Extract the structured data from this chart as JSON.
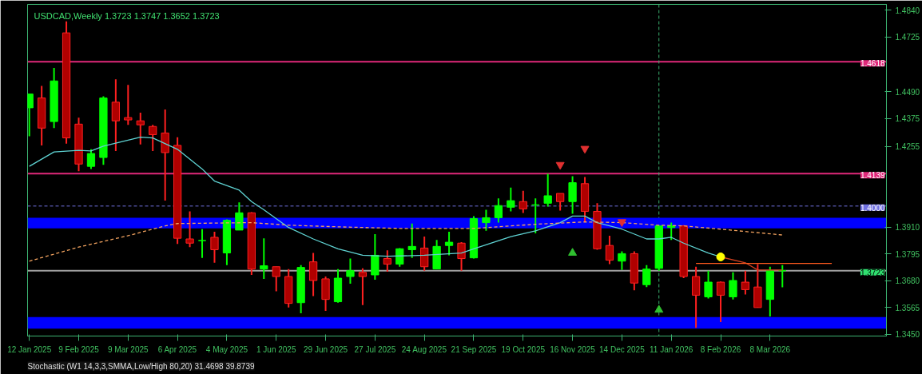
{
  "chart_data": {
    "type": "candlestick",
    "title": "USDCAD,Weekly  1.3723 1.3747 1.3652 1.3723",
    "x": [
      "2025-01-12",
      "2025-01-19",
      "2025-01-26",
      "2025-02-02",
      "2025-02-09",
      "2025-02-16",
      "2025-02-23",
      "2025-03-02",
      "2025-03-09",
      "2025-03-16",
      "2025-03-23",
      "2025-03-30",
      "2025-04-06",
      "2025-04-13",
      "2025-04-20",
      "2025-04-27",
      "2025-05-04",
      "2025-05-11",
      "2025-05-18",
      "2025-05-25",
      "2025-06-01",
      "2025-06-08",
      "2025-06-15",
      "2025-06-22",
      "2025-06-29",
      "2025-07-06",
      "2025-07-13",
      "2025-07-20",
      "2025-07-27",
      "2025-08-03",
      "2025-08-10",
      "2025-08-17",
      "2025-08-24",
      "2025-08-31",
      "2025-09-07",
      "2025-09-14",
      "2025-09-21",
      "2025-09-28",
      "2025-10-05",
      "2025-10-12",
      "2025-10-19",
      "2025-10-26",
      "2025-11-02",
      "2025-11-09",
      "2025-11-16",
      "2025-11-23",
      "2025-11-30",
      "2025-12-07",
      "2025-12-14",
      "2025-12-21",
      "2025-12-28",
      "2026-01-04",
      "2026-01-11",
      "2026-01-18",
      "2026-01-25",
      "2026-02-01",
      "2026-02-08",
      "2026-02-15",
      "2026-02-22",
      "2026-03-01",
      "2026-03-08",
      "2026-03-15"
    ],
    "ohlc": [
      [
        1.4421,
        1.448,
        1.4299,
        1.448
      ],
      [
        1.4463,
        1.4515,
        1.426,
        1.4334
      ],
      [
        1.4362,
        1.4592,
        1.4334,
        1.4536
      ],
      [
        1.4742,
        1.4791,
        1.4267,
        1.4292
      ],
      [
        1.4351,
        1.4379,
        1.4149,
        1.418
      ],
      [
        1.417,
        1.4243,
        1.4159,
        1.4225
      ],
      [
        1.4208,
        1.447,
        1.4177,
        1.4463
      ],
      [
        1.4445,
        1.4543,
        1.4236,
        1.4365
      ],
      [
        1.4379,
        1.4519,
        1.4348,
        1.4369
      ],
      [
        1.4365,
        1.44,
        1.4264,
        1.4348
      ],
      [
        1.4341,
        1.4348,
        1.4236,
        1.4306
      ],
      [
        1.4313,
        1.4414,
        1.4023,
        1.4229
      ],
      [
        1.426,
        1.4295,
        1.3838,
        1.3862
      ],
      [
        1.3859,
        1.3977,
        1.3824,
        1.3841
      ],
      [
        1.3852,
        1.3901,
        1.3778,
        1.3852
      ],
      [
        1.3866,
        1.389,
        1.3757,
        1.3813
      ],
      [
        1.3799,
        1.3943,
        1.3747,
        1.3939
      ],
      [
        1.3897,
        1.4016,
        1.3897,
        1.3971
      ],
      [
        1.3971,
        1.3974,
        1.3705,
        1.373
      ],
      [
        1.373,
        1.3862,
        1.3688,
        1.3744
      ],
      [
        1.374,
        1.374,
        1.3635,
        1.3698
      ],
      [
        1.3698,
        1.373,
        1.3565,
        1.3583
      ],
      [
        1.3586,
        1.3747,
        1.3541,
        1.3737
      ],
      [
        1.3761,
        1.3799,
        1.3614,
        1.3681
      ],
      [
        1.3688,
        1.3698,
        1.3551,
        1.36
      ],
      [
        1.359,
        1.373,
        1.3586,
        1.3691
      ],
      [
        1.3698,
        1.3775,
        1.3667,
        1.3723
      ],
      [
        1.3716,
        1.3733,
        1.3576,
        1.3698
      ],
      [
        1.3705,
        1.388,
        1.3684,
        1.3789
      ],
      [
        1.3775,
        1.381,
        1.3719,
        1.3751
      ],
      [
        1.3751,
        1.382,
        1.374,
        1.3817
      ],
      [
        1.3813,
        1.3925,
        1.3778,
        1.3827
      ],
      [
        1.382,
        1.3869,
        1.3723,
        1.374
      ],
      [
        1.373,
        1.3855,
        1.373,
        1.3827
      ],
      [
        1.3831,
        1.389,
        1.3789,
        1.3845
      ],
      [
        1.3841,
        1.3845,
        1.3723,
        1.3775
      ],
      [
        1.3778,
        1.3957,
        1.3775,
        1.3946
      ],
      [
        1.3929,
        1.3984,
        1.3894,
        1.395
      ],
      [
        1.395,
        1.4033,
        1.3929,
        1.4002
      ],
      [
        1.3995,
        1.4079,
        1.3977,
        1.4023
      ],
      [
        1.4019,
        1.4065,
        1.397,
        1.3988
      ],
      [
        1.4005,
        1.4033,
        1.3883,
        1.4005
      ],
      [
        1.4012,
        1.4138,
        1.3998,
        1.4044
      ],
      [
        1.4054,
        1.4054,
        1.3981,
        1.4019
      ],
      [
        1.4019,
        1.4128,
        1.3967,
        1.41
      ],
      [
        1.4096,
        1.4124,
        1.3932,
        1.3977
      ],
      [
        1.3977,
        1.4012,
        1.3813,
        1.3817
      ],
      [
        1.3831,
        1.3873,
        1.3751,
        1.3768
      ],
      [
        1.3764,
        1.3806,
        1.3726,
        1.3796
      ],
      [
        1.3796,
        1.3806,
        1.3639,
        1.367
      ],
      [
        1.3663,
        1.3747,
        1.3653,
        1.373
      ],
      [
        1.3733,
        1.3915,
        1.3723,
        1.3915
      ],
      [
        1.3908,
        1.3929,
        1.3855,
        1.3915
      ],
      [
        1.3915,
        1.3918,
        1.3691,
        1.3698
      ],
      [
        1.3698,
        1.374,
        1.3478,
        1.3618
      ],
      [
        1.3611,
        1.3723,
        1.3604,
        1.3674
      ],
      [
        1.3674,
        1.3677,
        1.3503,
        1.3618
      ],
      [
        1.3611,
        1.3716,
        1.36,
        1.3681
      ],
      [
        1.3674,
        1.3723,
        1.3621,
        1.3642
      ],
      [
        1.3653,
        1.3751,
        1.3565,
        1.3565
      ],
      [
        1.36,
        1.374,
        1.3527,
        1.3723
      ],
      [
        1.3723,
        1.3747,
        1.3652,
        1.3723
      ]
    ],
    "colors": [
      "#00ff00",
      "#b00000",
      "#00ff00",
      "#b00000",
      "#b00000",
      "#00ff00",
      "#00ff00",
      "#b00000",
      "#b00000",
      "#b00000",
      "#b00000",
      "#b00000",
      "#b00000",
      "#b00000",
      "#00ff00",
      "#b00000",
      "#00ff00",
      "#00ff00",
      "#b00000",
      "#00ff00",
      "#b00000",
      "#b00000",
      "#00ff00",
      "#b00000",
      "#b00000",
      "#00ff00",
      "#00ff00",
      "#b00000",
      "#00ff00",
      "#b00000",
      "#00ff00",
      "#00ff00",
      "#b00000",
      "#00ff00",
      "#00ff00",
      "#b00000",
      "#00ff00",
      "#00ff00",
      "#00ff00",
      "#00ff00",
      "#b00000",
      "#00ff00",
      "#00ff00",
      "#b00000",
      "#00ff00",
      "#b00000",
      "#b00000",
      "#b00000",
      "#00ff00",
      "#b00000",
      "#00ff00",
      "#00ff00",
      "#00ff00",
      "#b00000",
      "#b00000",
      "#00ff00",
      "#b00000",
      "#00ff00",
      "#b00000",
      "#b00000",
      "#00ff00",
      "#00ff00"
    ],
    "series": [
      {
        "type": "line",
        "color": "#5fd3d3",
        "x": [
          "2025-01-12",
          "2025-01-26",
          "2025-02-09",
          "2025-02-16",
          "2025-02-23",
          "2025-03-16",
          "2025-03-23",
          "2025-04-06",
          "2025-04-20",
          "2025-04-27",
          "2025-05-11",
          "2025-05-18",
          "2025-05-25",
          "2025-06-08",
          "2025-06-22",
          "2025-07-06",
          "2025-07-20",
          "2025-08-03",
          "2025-08-24",
          "2025-09-14",
          "2025-09-21",
          "2025-10-12",
          "2025-10-26",
          "2025-11-09",
          "2025-11-16",
          "2025-11-23",
          "2025-11-30",
          "2025-12-14",
          "2025-12-28",
          "2026-01-04",
          "2026-01-11",
          "2026-01-18",
          "2026-02-01",
          "2026-02-08"
        ],
        "values": [
          1.417,
          1.4232,
          1.4239,
          1.4236,
          1.4257,
          1.4295,
          1.4292,
          1.4243,
          1.4159,
          1.4107,
          1.4068,
          1.4019,
          1.3984,
          1.3908,
          1.3859,
          1.3817,
          1.3789,
          1.3785,
          1.3789,
          1.3799,
          1.3817,
          1.3869,
          1.3894,
          1.3929,
          1.3957,
          1.3957,
          1.3929,
          1.3901,
          1.3859,
          1.3859,
          1.3866,
          1.3841,
          1.3799,
          1.3782
        ]
      },
      {
        "type": "line",
        "color": "#d04020",
        "x": [
          "2026-02-08",
          "2026-02-22",
          "2026-03-01",
          "2026-03-15"
        ],
        "values": [
          1.3782,
          1.3757,
          1.3726,
          1.3726
        ]
      },
      {
        "type": "line",
        "color": "#f4a460",
        "line_style": "dashed",
        "x": [
          "2025-01-12",
          "2025-02-09",
          "2025-03-09",
          "2025-03-30",
          "2025-04-06",
          "2025-05-18",
          "2025-06-08",
          "2025-07-06",
          "2025-08-10",
          "2025-09-21",
          "2025-10-26",
          "2025-11-23",
          "2025-12-14",
          "2026-01-04",
          "2026-01-18",
          "2026-02-08",
          "2026-03-15"
        ],
        "values": [
          1.3764,
          1.3824,
          1.3873,
          1.3915,
          1.3925,
          1.3929,
          1.3918,
          1.3911,
          1.3904,
          1.3904,
          1.3922,
          1.3932,
          1.3929,
          1.3918,
          1.3915,
          1.3901,
          1.3876
        ]
      },
      {
        "type": "line",
        "color": "#ff5a1e",
        "x": [
          "2026-01-25",
          "2026-04-12"
        ],
        "values": [
          1.3754,
          1.3754
        ]
      },
      {
        "type": "scatter",
        "color": "#ffff00",
        "marker": "circle",
        "x": [
          "2026-02-08"
        ],
        "values": [
          1.3782
        ]
      },
      {
        "type": "scatter",
        "color": "#e03030",
        "x": [
          "2025-11-09",
          "2025-11-23",
          "2025-12-14"
        ],
        "values": [
          1.4177,
          1.4246,
          1.3932
        ]
      },
      {
        "type": "scatter",
        "color": "#30c030",
        "marker": "triangle",
        "x": [
          "2025-11-16",
          "2026-01-04"
        ],
        "values": [
          1.3799,
          1.3555
        ]
      }
    ],
    "xlim": [
      "2025-01-11",
      "2026-05-13"
    ],
    "xticks": [
      {
        "value": "2025-01-12",
        "label": "12 Jan 2025"
      },
      {
        "value": "2025-02-09",
        "label": "9 Feb 2025"
      },
      {
        "value": "2025-03-09",
        "label": "9 Mar 2025"
      },
      {
        "value": "2025-04-06",
        "label": "6 Apr 2025"
      },
      {
        "value": "2025-05-04",
        "label": "4 May 2025"
      },
      {
        "value": "2025-06-01",
        "label": "1 Jun 2025"
      },
      {
        "value": "2025-06-29",
        "label": "29 Jun 2025"
      },
      {
        "value": "2025-07-27",
        "label": "27 Jul 2025"
      },
      {
        "value": "2025-08-24",
        "label": "24 Aug 2025"
      },
      {
        "value": "2025-09-21",
        "label": "21 Sep 2025"
      },
      {
        "value": "2025-10-19",
        "label": "19 Oct 2025"
      },
      {
        "value": "2025-11-16",
        "label": "16 Nov 2025"
      },
      {
        "value": "2025-12-14",
        "label": "14 Dec 2025"
      },
      {
        "value": "2026-01-11",
        "label": "11 Jan 2026"
      },
      {
        "value": "2026-02-08",
        "label": "8 Feb 2026"
      },
      {
        "value": "2026-03-08",
        "label": "8 Mar 2026"
      }
    ],
    "ylim": [
      1.3443,
      1.4864
    ],
    "yticks": [
      {
        "value": 1.484,
        "label": "1.4840"
      },
      {
        "value": 1.4725,
        "label": "1.4725"
      },
      {
        "value": 1.449,
        "label": "1.4490"
      },
      {
        "value": 1.4375,
        "label": "1.4375"
      },
      {
        "value": 1.4255,
        "label": "1.4255"
      },
      {
        "value": 1.391,
        "label": "1.3910"
      },
      {
        "value": 1.3795,
        "label": "1.3795"
      },
      {
        "value": 1.368,
        "label": "1.3680"
      },
      {
        "value": 1.3565,
        "label": "1.3565"
      },
      {
        "value": 1.345,
        "label": "1.3450"
      }
    ],
    "ref_lines": [
      {
        "axis": "y",
        "value": 1.4618,
        "label": "1.4618",
        "color": "#e0287a"
      },
      {
        "axis": "y",
        "value": 1.4139,
        "label": "1.4139",
        "color": "#e0287a"
      },
      {
        "axis": "y",
        "value": 1.4,
        "label": "1.4000",
        "color": "#7070e0",
        "line_style": "dashed"
      },
      {
        "axis": "y",
        "value": 1.3723,
        "label": "1.3723",
        "color": "#a0a0a0"
      },
      {
        "axis": "x",
        "value": "2026-01-04",
        "color": "#3cb371",
        "line_style": "dashed"
      }
    ],
    "bands": [
      {
        "axis": "y",
        "from": 1.3904,
        "to": 1.395,
        "color": "#0000ff"
      },
      {
        "axis": "y",
        "from": 1.3475,
        "to": 1.3524,
        "color": "#0000ff"
      }
    ],
    "annotations": [
      "Stochastic (W1 14,3,3,SMMA,Low/High 80,20) 31.4698 39.8739"
    ]
  }
}
